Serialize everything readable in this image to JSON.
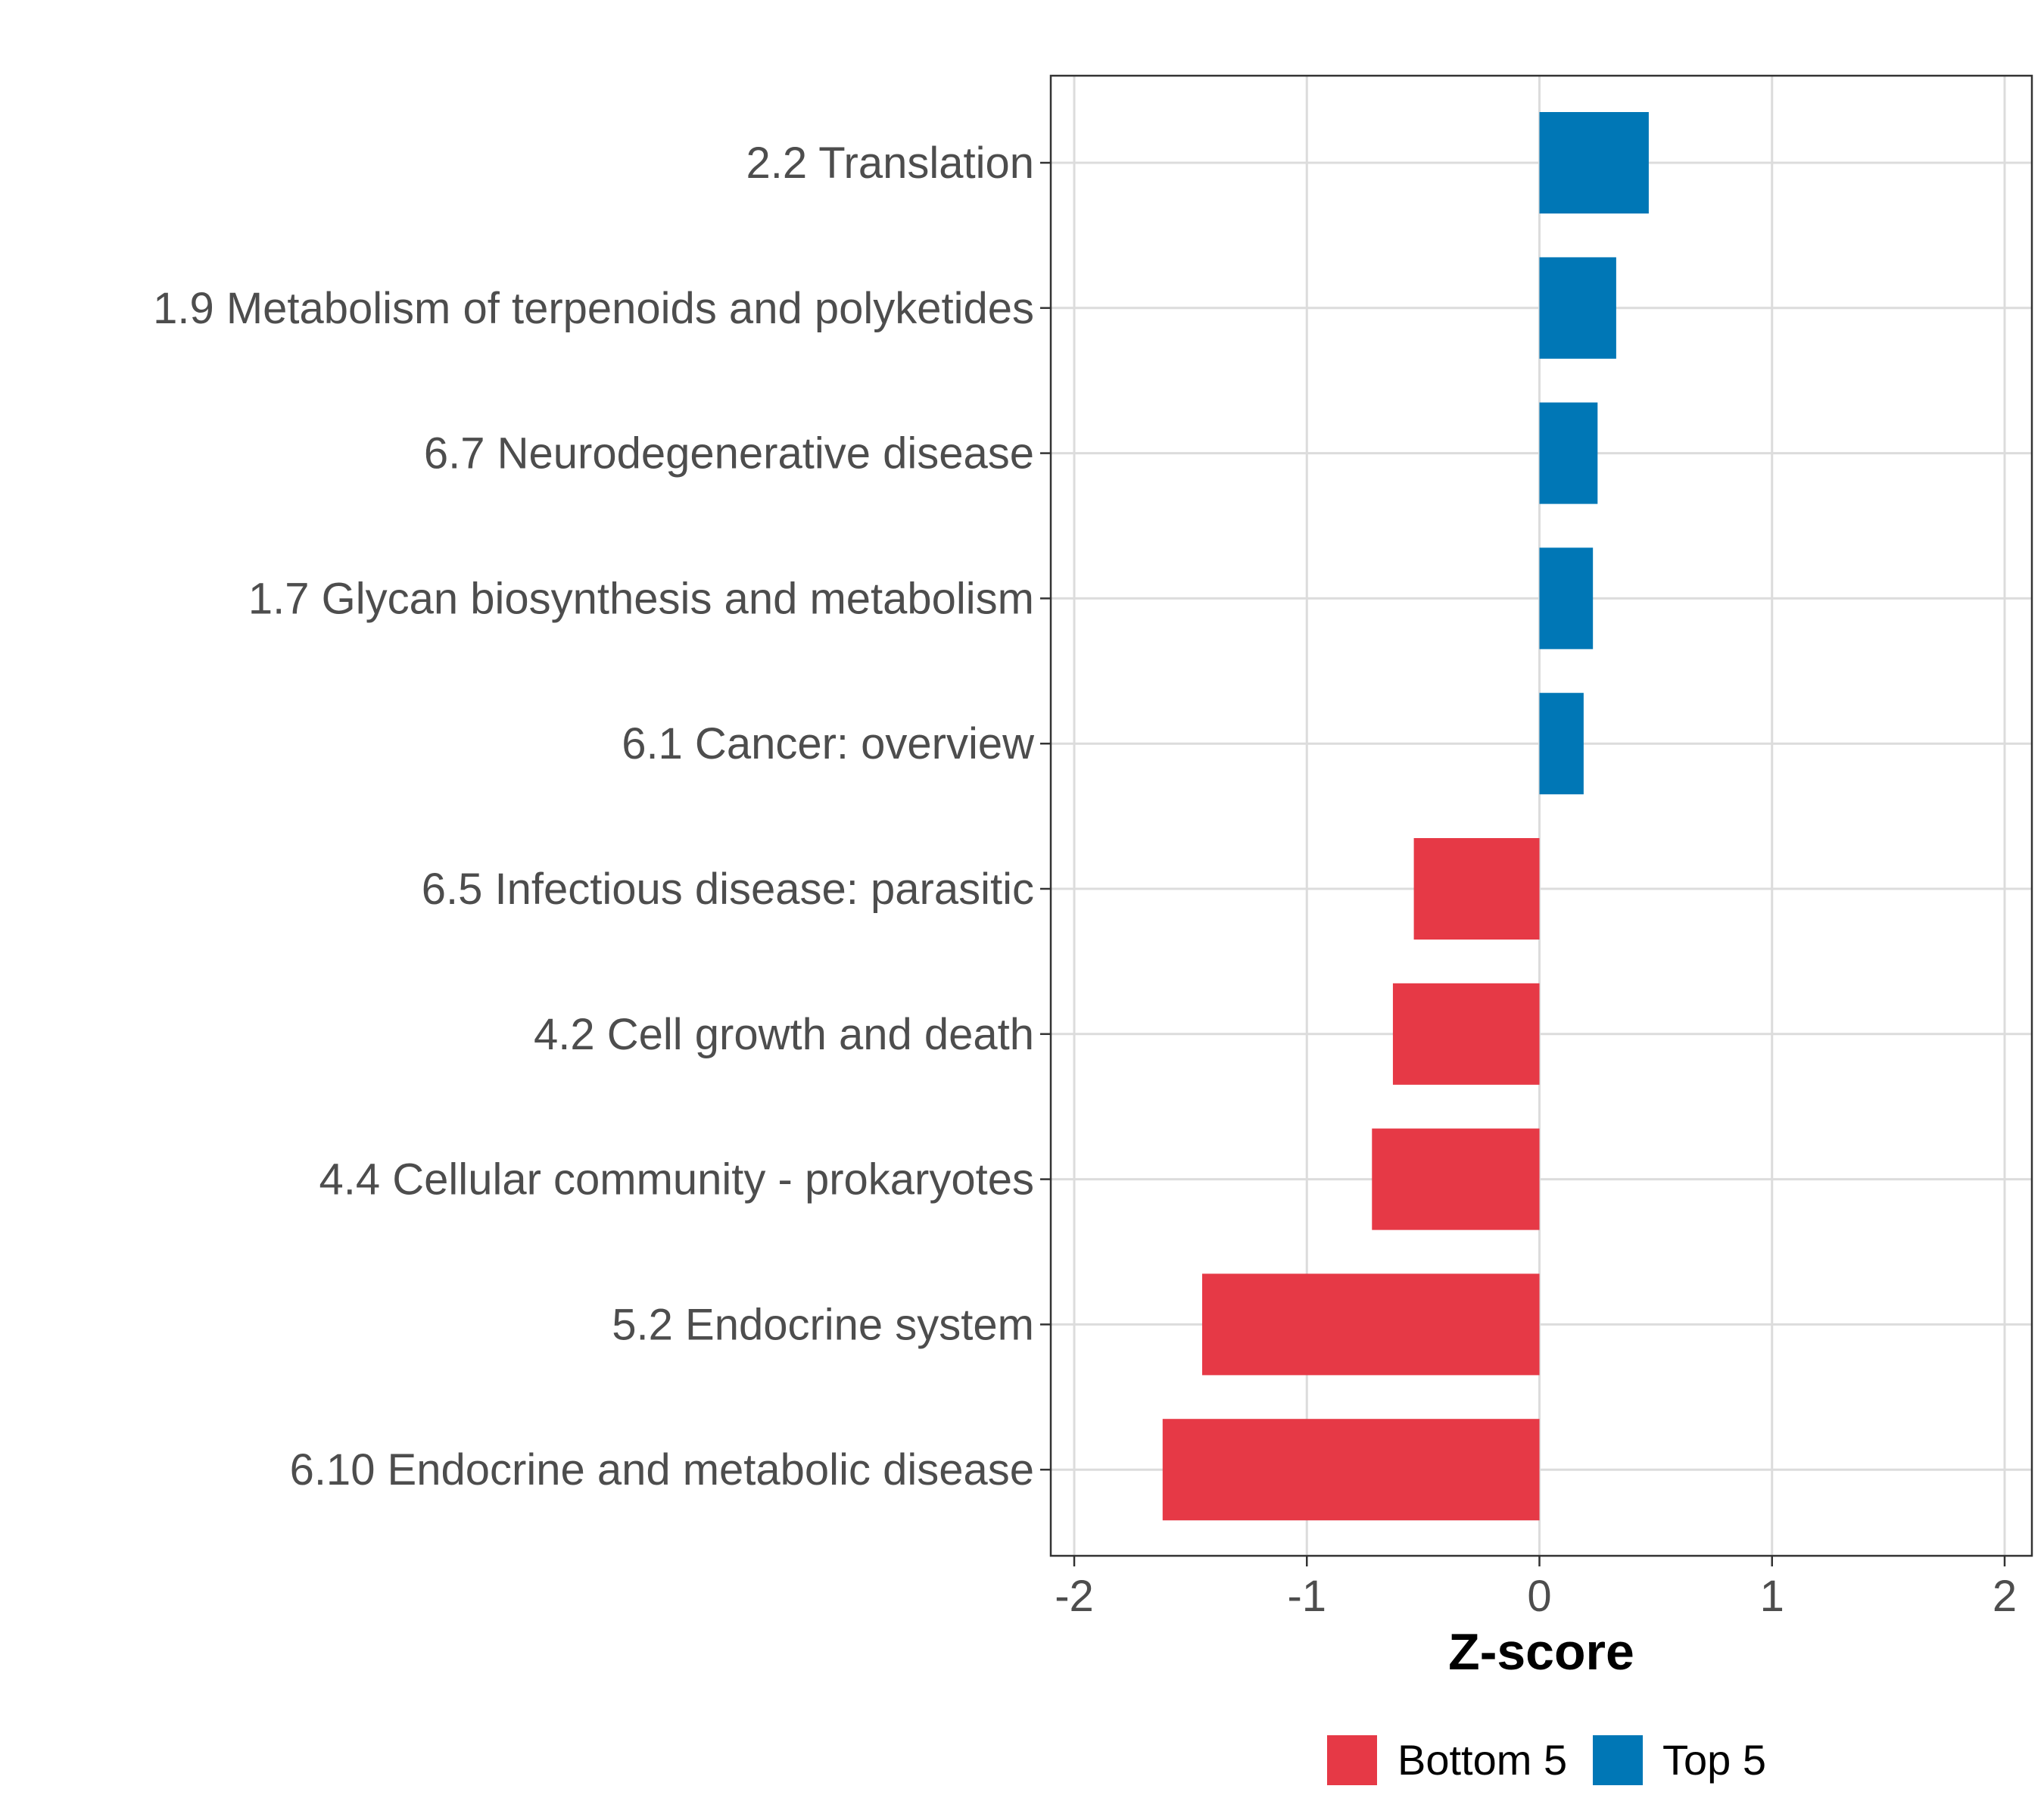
{
  "chart_data": {
    "type": "bar",
    "orientation": "horizontal",
    "title": "",
    "xlabel": "Z-score",
    "ylabel": "",
    "xlim": [
      -2,
      2
    ],
    "xticks": [
      "-2",
      "-1",
      "0",
      "1",
      "2"
    ],
    "grid": true,
    "legend_position": "bottom",
    "categories": [
      "2.2 Translation",
      "1.9 Metabolism of terpenoids and polyketides",
      "6.7 Neurodegenerative disease",
      "1.7 Glycan biosynthesis and metabolism",
      "6.1 Cancer: overview",
      "6.5 Infectious disease: parasitic",
      "4.2 Cell growth and death",
      "4.4 Cellular community - prokaryotes",
      "5.2 Endocrine system",
      "6.10 Endocrine and metabolic disease"
    ],
    "values": [
      0.47,
      0.33,
      0.25,
      0.23,
      0.19,
      -0.54,
      -0.63,
      -0.72,
      -1.45,
      -1.62
    ],
    "groups": [
      "Top 5",
      "Top 5",
      "Top 5",
      "Top 5",
      "Top 5",
      "Bottom 5",
      "Bottom 5",
      "Bottom 5",
      "Bottom 5",
      "Bottom 5"
    ],
    "legend": [
      {
        "name": "Bottom 5",
        "color": "#e63946"
      },
      {
        "name": "Top 5",
        "color": "#0077b6"
      }
    ]
  }
}
